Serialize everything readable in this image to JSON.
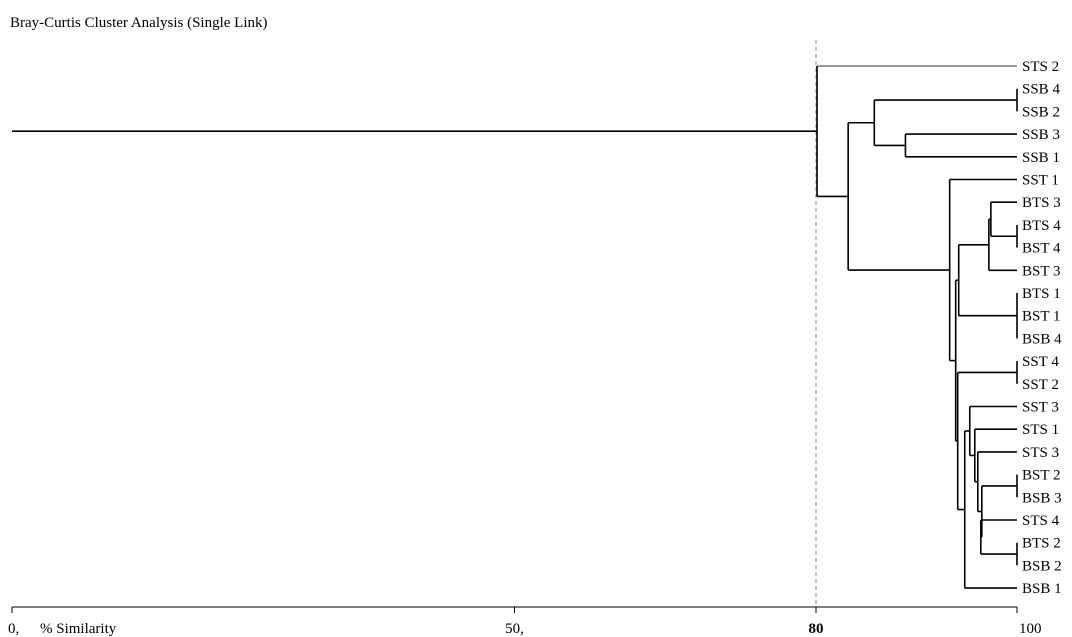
{
  "title": "Bray-Curtis Cluster Analysis (Single Link)",
  "axis": {
    "label": "% Similarity",
    "range": [
      0,
      100
    ],
    "ticks": [
      {
        "value": 0,
        "label": "0,"
      },
      {
        "value": 50,
        "label": "50,"
      },
      {
        "value": 80,
        "label": "80",
        "bold": true
      },
      {
        "value": 100,
        "label": "100"
      }
    ],
    "cutoff": 80
  },
  "colors": {
    "line": "#000000",
    "gray_line": "#777777",
    "cutoff": "#888888"
  },
  "leaves": [
    "STS 2",
    "SSB 4",
    "SSB 2",
    "SSB 3",
    "SSB 1",
    "SST 1",
    "BTS 3",
    "BTS 4",
    "BST 4",
    "BST 3",
    "BTS 1",
    "BST 1",
    "BSB 4",
    "SST 4",
    "SST 2",
    "SST 3",
    "STS 1",
    "STS 3",
    "BST 2",
    "BSB 3",
    "STS 4",
    "BTS 2",
    "BSB 2",
    "BSB 1"
  ],
  "root": {
    "similarity": 80.1,
    "stem_from": 0,
    "children": [
      {
        "leaf": "STS 2",
        "gray": true
      },
      {
        "similarity": 83.2,
        "children": [
          {
            "similarity": 85.8,
            "children": [
              {
                "similarity": 100,
                "children": [
                  {
                    "leaf": "SSB 4"
                  },
                  {
                    "leaf": "SSB 2"
                  }
                ]
              },
              {
                "similarity": 88.9,
                "children": [
                  {
                    "leaf": "SSB 3"
                  },
                  {
                    "leaf": "SSB 1"
                  }
                ]
              }
            ]
          },
          {
            "similarity": 93.3,
            "children": [
              {
                "leaf": "SST 1"
              },
              {
                "similarity": 93.9,
                "children": [
                  {
                    "similarity": 94.2,
                    "children": [
                      {
                        "similarity": 97.2,
                        "children": [
                          {
                            "similarity": 97.4,
                            "children": [
                              {
                                "leaf": "BTS 3"
                              },
                              {
                                "similarity": 100,
                                "children": [
                                  {
                                    "leaf": "BTS 4"
                                  },
                                  {
                                    "leaf": "BST 4"
                                  }
                                ]
                              }
                            ]
                          },
                          {
                            "leaf": "BST 3"
                          }
                        ]
                      },
                      {
                        "similarity": 100,
                        "children": [
                          {
                            "leaf": "BTS 1"
                          },
                          {
                            "leaf": "BST 1"
                          },
                          {
                            "leaf": "BSB 4"
                          }
                        ]
                      }
                    ]
                  },
                  {
                    "similarity": 94.1,
                    "children": [
                      {
                        "similarity": 100,
                        "children": [
                          {
                            "leaf": "SST 4"
                          },
                          {
                            "leaf": "SST 2"
                          }
                        ]
                      },
                      {
                        "similarity": 94.8,
                        "children": [
                          {
                            "similarity": 95.3,
                            "children": [
                              {
                                "leaf": "SST 3"
                              },
                              {
                                "similarity": 95.8,
                                "children": [
                                  {
                                    "leaf": "STS 1"
                                  },
                                  {
                                    "similarity": 96.1,
                                    "children": [
                                      {
                                        "leaf": "STS 3"
                                      },
                                      {
                                        "similarity": 96.5,
                                        "children": [
                                          {
                                            "similarity": 100,
                                            "children": [
                                              {
                                                "leaf": "BST 2"
                                              },
                                              {
                                                "leaf": "BSB 3"
                                              }
                                            ]
                                          },
                                          {
                                            "similarity": 96.4,
                                            "children": [
                                              {
                                                "leaf": "STS 4"
                                              },
                                              {
                                                "similarity": 100,
                                                "children": [
                                                  {
                                                    "leaf": "BTS 2"
                                                  },
                                                  {
                                                    "leaf": "BSB 2"
                                                  }
                                                ]
                                              }
                                            ]
                                          }
                                        ]
                                      }
                                    ]
                                  }
                                ]
                              }
                            ]
                          },
                          {
                            "leaf": "BSB 1"
                          }
                        ]
                      }
                    ]
                  }
                ]
              }
            ]
          }
        ]
      }
    ]
  }
}
